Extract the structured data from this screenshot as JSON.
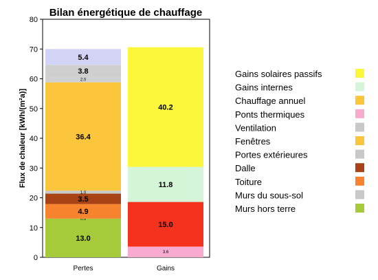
{
  "chart_data": {
    "type": "bar",
    "stacked": true,
    "title": "Bilan énergétique de chauffage",
    "xlabel": "",
    "ylabel": "Flux de chaleur [kWh/(m²a)]",
    "ylim": [
      0,
      80
    ],
    "yticks": [
      "0",
      "10",
      "20",
      "30",
      "40",
      "50",
      "60",
      "70",
      "80"
    ],
    "categories": [
      "Pertes",
      "Gains"
    ],
    "legend_position": "right",
    "stacks": [
      {
        "category": "Pertes",
        "segments": [
          {
            "series": "Murs hors terre",
            "value": 13.0,
            "label": "13.0",
            "color": "#a5cb3a",
            "label_size": "big"
          },
          {
            "series": "Murs du sous-sol",
            "value": 0.0,
            "label": "0.0",
            "color": "#c8c8c8",
            "label_size": "small"
          },
          {
            "series": "Toiture",
            "value": 4.9,
            "label": "4.9",
            "color": "#f7832f",
            "label_size": "big"
          },
          {
            "series": "Dalle",
            "value": 3.5,
            "label": "3.5",
            "color": "#a84316",
            "label_size": "big"
          },
          {
            "series": "Portes extérieures",
            "value": 1.0,
            "label": "1.0",
            "color": "#c8c8c8",
            "label_size": "small"
          },
          {
            "series": "Fenêtres",
            "value": 36.4,
            "label": "36.4",
            "color": "#fcc63c",
            "label_size": "big"
          },
          {
            "series": "Ventilation",
            "value": 2.0,
            "label": "2.0",
            "color": "#d0d0d0",
            "label_size": "small"
          },
          {
            "series": "Ponts thermiques",
            "value": 3.8,
            "label": "3.8",
            "color": "#cfcfcf",
            "label_size": "big"
          },
          {
            "series": "Chauffage annuel",
            "value": 5.4,
            "label": "5.4",
            "color": "#d3d3f5",
            "label_size": "big"
          }
        ]
      },
      {
        "category": "Gains",
        "segments": [
          {
            "series": "Ponts thermiques",
            "value": 3.6,
            "label": "3.6",
            "color": "#f9aacf",
            "label_size": "small"
          },
          {
            "series": "Chauffage annuel",
            "value": 15.0,
            "label": "15.0",
            "color": "#f5321e",
            "label_size": "big"
          },
          {
            "series": "Gains internes",
            "value": 11.8,
            "label": "11.8",
            "color": "#d4f5d8",
            "label_size": "big"
          },
          {
            "series": "Gains solaires passifs",
            "value": 40.2,
            "label": "40.2",
            "color": "#fdf73b",
            "label_size": "big"
          }
        ]
      }
    ],
    "legend": [
      {
        "label": "Gains solaires passifs",
        "color": "#fdf73b"
      },
      {
        "label": "Gains internes",
        "color": "#d4f5d8"
      },
      {
        "label": "Chauffage annuel",
        "color": "#fcc63c"
      },
      {
        "label": "Ponts thermiques",
        "color": "#f9aacf"
      },
      {
        "label": "Ventilation",
        "color": "#c8c8c8"
      },
      {
        "label": "Fenêtres",
        "color": "#fcc63c"
      },
      {
        "label": "Portes extérieures",
        "color": "#c8c8c8"
      },
      {
        "label": "Dalle",
        "color": "#a84316"
      },
      {
        "label": "Toiture",
        "color": "#f7832f"
      },
      {
        "label": "Murs du sous-sol",
        "color": "#c8c8c8"
      },
      {
        "label": "Murs hors terre",
        "color": "#a5cb3a"
      }
    ]
  }
}
